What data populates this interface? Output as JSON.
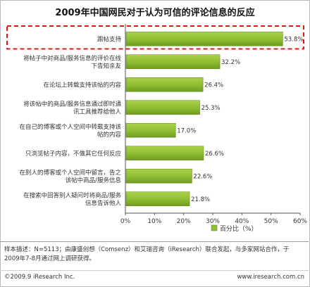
{
  "chart_data": {
    "type": "bar",
    "orientation": "horizontal",
    "title": "2009年中国网民对于认为可信的评论信息的反应",
    "categories": [
      "跟帖支持",
      "将帖子中对商品/服务信息的评价在线下告知亲友",
      "在论坛上转载支持该帖的内容",
      "将该帖中的商品/服务信息通过即时通讯工具推荐给他人",
      "在自己的博客或个人空间中转载支持该帖的内容",
      "只浏览帖子内容，不做其它任何反应",
      "在别人的博客或个人空间中留言，告之该帖中商品/服务信息",
      "在搜索中回答别人疑问时将商品/服务信息告诉他人"
    ],
    "series": [
      {
        "name": "百分比（%）",
        "values": [
          53.8,
          32.2,
          26.4,
          25.3,
          17.0,
          26.6,
          22.6,
          21.8
        ],
        "value_labels": [
          "53.8%",
          "32.2%",
          "26.4%",
          "25.3%",
          "17.0%",
          "26.6%",
          "22.6%",
          "21.8%"
        ]
      }
    ],
    "xlim": [
      0,
      60
    ],
    "x_ticks": [
      "0%",
      "10%",
      "20%",
      "30%",
      "40%",
      "50%",
      "60%"
    ],
    "legend": "bottom-right",
    "grid": false,
    "highlight": "first bar outlined with red dashed box",
    "colors": {
      "bar": "#8fbc32",
      "bar_dark": "#6f9a1e",
      "highlight": "#e01818"
    }
  },
  "note": "样本描述：N=5113；由康盛创想（Comsenz）和艾瑞咨询（iResearch）联合发起，与多家网站合作，于2009年7-8月通过网上调研获得。",
  "footer": {
    "left": "©2009.9 iResearch Inc.",
    "right": "www.iresearch.com.cn"
  }
}
